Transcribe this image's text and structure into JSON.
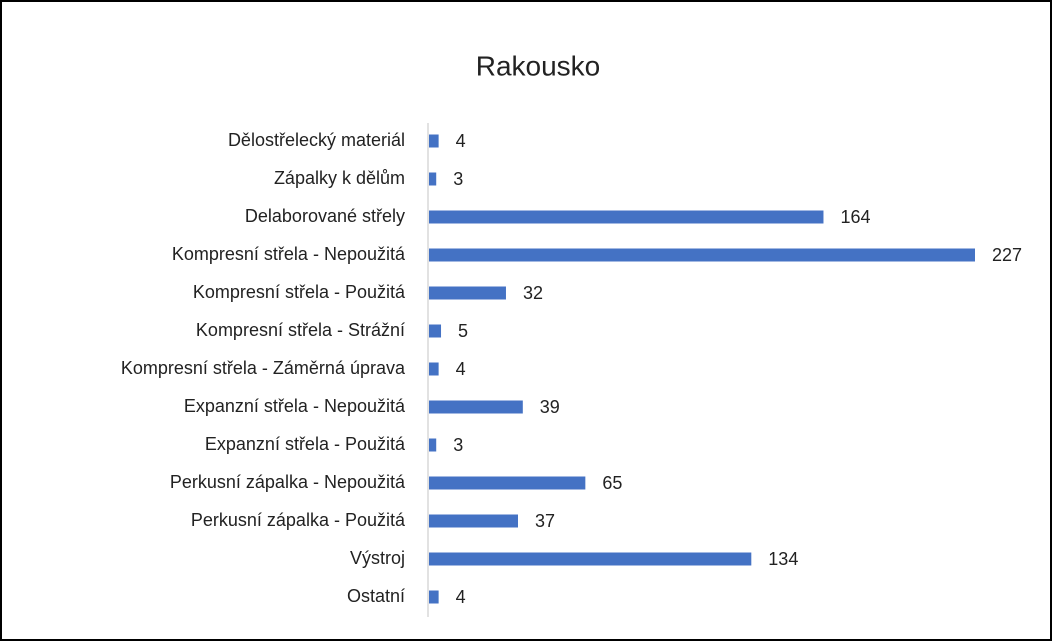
{
  "chart_data": {
    "type": "bar",
    "orientation": "horizontal",
    "title": "Rakousko",
    "categories": [
      "Dělostřelecký materiál",
      "Zápalky k dělům",
      "Delaborované střely",
      "Kompresní střela - Nepoužitá",
      "Kompresní střela - Použitá",
      "Kompresní střela - Strážní",
      "Kompresní střela - Záměrná úprava",
      "Expanzní střela - Nepoužitá",
      "Expanzní střela - Použitá",
      "Perkusní zápalka - Nepoužitá",
      "Perkusní zápalka - Použitá",
      "Výstroj",
      "Ostatní"
    ],
    "values": [
      4,
      3,
      164,
      227,
      32,
      5,
      4,
      39,
      3,
      65,
      37,
      134,
      4
    ],
    "color": "#4472c4"
  }
}
